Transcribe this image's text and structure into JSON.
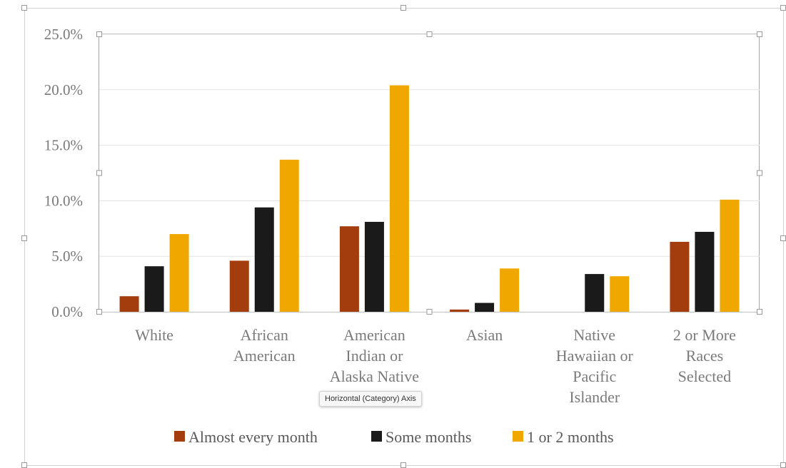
{
  "colors": {
    "series": [
      "#A33D0E",
      "#1A1A1A",
      "#F0A800"
    ],
    "gridline": "#e3e3e3",
    "axis": "#bfbfbf",
    "handle": "#9a9a9a",
    "label": "#7a7a7a"
  },
  "tooltip": {
    "text": "Horizontal (Category) Axis"
  },
  "chart_data": {
    "type": "bar",
    "title": "",
    "xlabel": "",
    "ylabel": "",
    "ylim": [
      0,
      0.25
    ],
    "yticks": [
      0,
      0.05,
      0.1,
      0.15,
      0.2,
      0.25
    ],
    "ytick_labels": [
      "0.0%",
      "5.0%",
      "10.0%",
      "15.0%",
      "20.0%",
      "25.0%"
    ],
    "grid": true,
    "legend_position": "bottom",
    "categories": [
      [
        "White"
      ],
      [
        "African",
        "American"
      ],
      [
        "American",
        "Indian or",
        "Alaska Native"
      ],
      [
        "Asian"
      ],
      [
        "Native",
        "Hawaiian or",
        "Pacific",
        "Islander"
      ],
      [
        "2 or More",
        "Races",
        "Selected"
      ]
    ],
    "series": [
      {
        "name": "Almost every month",
        "values": [
          0.014,
          0.046,
          0.077,
          0.002,
          0.0,
          0.063
        ]
      },
      {
        "name": "Some months",
        "values": [
          0.041,
          0.094,
          0.081,
          0.008,
          0.034,
          0.072
        ]
      },
      {
        "name": "1 or 2 months",
        "values": [
          0.07,
          0.137,
          0.204,
          0.039,
          0.032,
          0.101
        ]
      }
    ]
  }
}
